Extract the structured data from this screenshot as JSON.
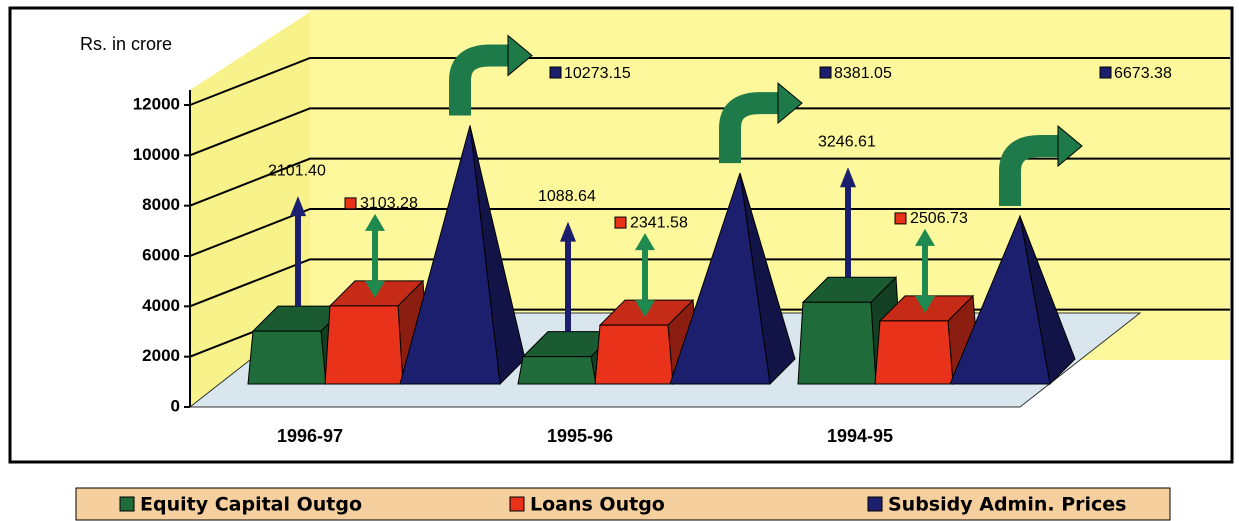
{
  "chart_data": {
    "type": "bar3d",
    "y_axis_label": "Rs. in crore",
    "categories": [
      "1996-97",
      "1995-96",
      "1994-95"
    ],
    "series": [
      {
        "name": "Equity Capital Outgo",
        "color": "#1f6b3a",
        "values": [
          2101.4,
          1088.64,
          3246.61
        ],
        "value_labels": [
          "2101.40",
          "1088.64",
          "3246.61"
        ]
      },
      {
        "name": "Loans Outgo",
        "color": "#e8321a",
        "values": [
          3103.28,
          2341.58,
          2506.73
        ]
      },
      {
        "name": "Subsidy Admin. Prices",
        "color": "#1c1f6e",
        "values": [
          10273.15,
          8381.05,
          6673.38
        ]
      }
    ],
    "ylim": [
      0,
      12000
    ],
    "yticks": [
      0,
      2000,
      4000,
      6000,
      8000,
      10000,
      12000
    ],
    "grid": true
  }
}
